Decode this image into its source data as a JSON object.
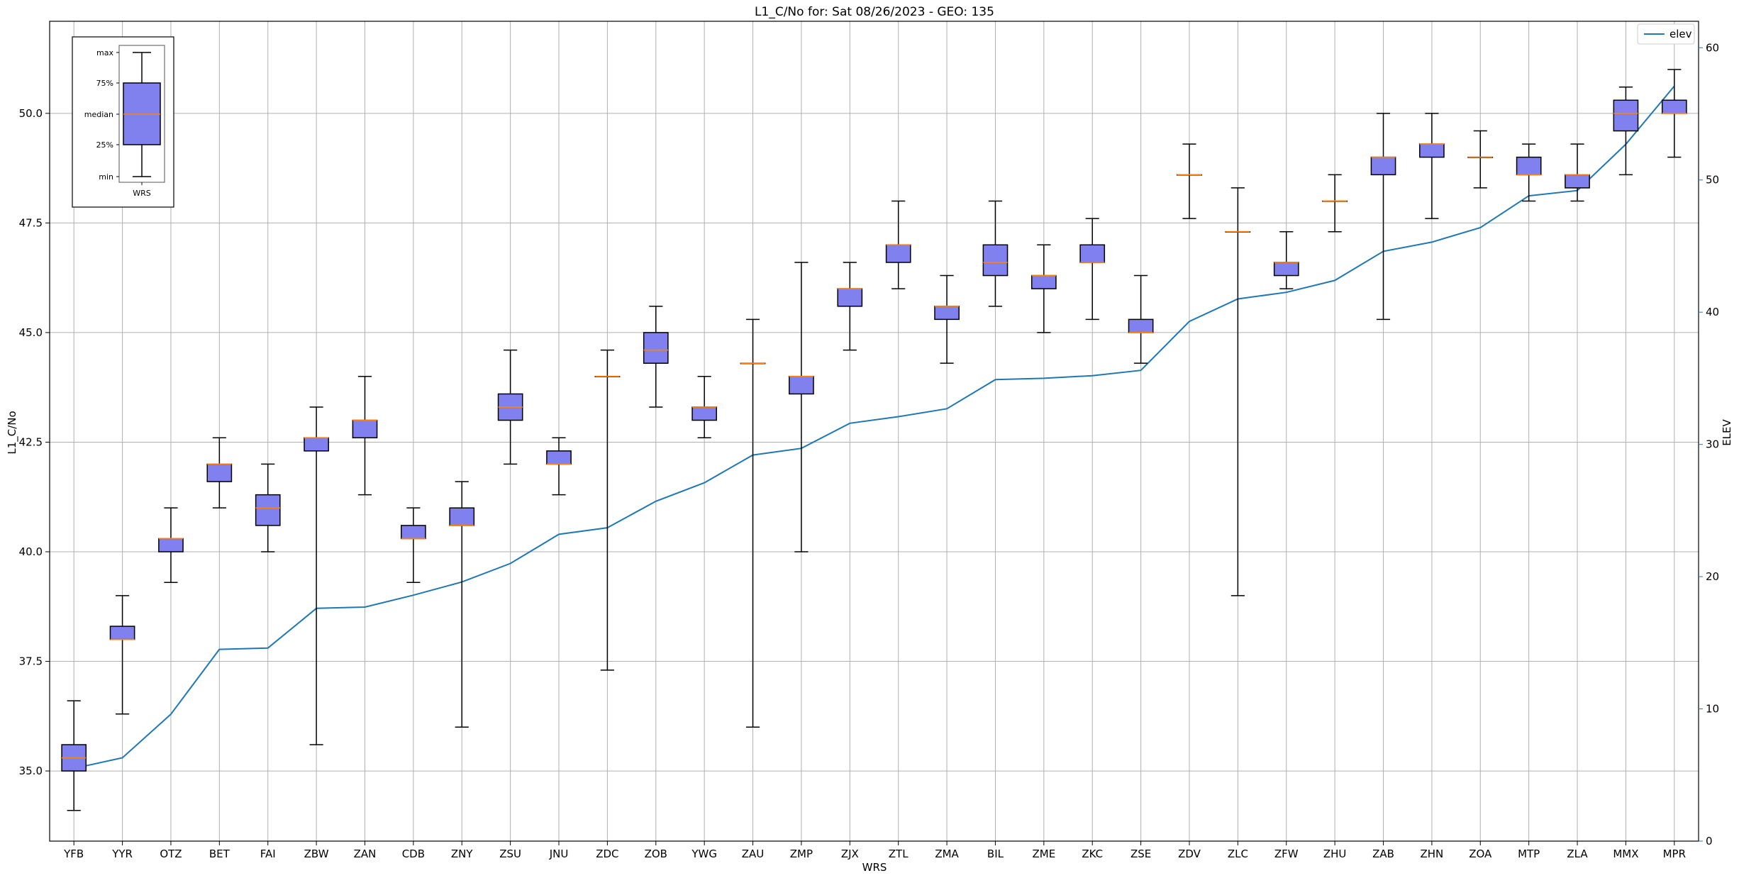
{
  "chart_data": {
    "type": "box",
    "title": "L1_C/No for: Sat 08/26/2023 - GEO: 135",
    "xlabel": "WRS",
    "ylabel": "L1_C/No",
    "ylabel_right": "ELEV",
    "ylim": [
      33.4,
      52.1
    ],
    "ylim_right": [
      0,
      62
    ],
    "yticks": [
      "35.0",
      "37.5",
      "40.0",
      "42.5",
      "45.0",
      "47.5",
      "50.0"
    ],
    "yticks_right": [
      "0",
      "10",
      "20",
      "30",
      "40",
      "50",
      "60"
    ],
    "grid": true,
    "legend": {
      "position": "top-right",
      "entries": [
        "elev"
      ]
    },
    "colors": {
      "box_fill": "#8080ee",
      "median": "#ff7f0e",
      "line": "#1f77b4",
      "right_axis": "#1f77b4"
    },
    "categories": [
      "YFB",
      "YYR",
      "OTZ",
      "BET",
      "FAI",
      "ZBW",
      "ZAN",
      "CDB",
      "ZNY",
      "ZSU",
      "JNU",
      "ZDC",
      "ZOB",
      "YWG",
      "ZAU",
      "ZMP",
      "ZJX",
      "ZTL",
      "ZMA",
      "BIL",
      "ZME",
      "ZKC",
      "ZSE",
      "ZDV",
      "ZLC",
      "ZFW",
      "ZHU",
      "ZAB",
      "ZHN",
      "ZOA",
      "MTP",
      "ZLA",
      "MMX",
      "MPR"
    ],
    "boxes": [
      {
        "min": 34.1,
        "q1": 35.0,
        "median": 35.3,
        "q3": 35.6,
        "max": 36.6
      },
      {
        "min": 36.3,
        "q1": 38.0,
        "median": 38.0,
        "q3": 38.3,
        "max": 39.0
      },
      {
        "min": 39.3,
        "q1": 40.0,
        "median": 40.3,
        "q3": 40.3,
        "max": 41.0
      },
      {
        "min": 41.0,
        "q1": 41.6,
        "median": 42.0,
        "q3": 42.0,
        "max": 42.6
      },
      {
        "min": 40.0,
        "q1": 40.6,
        "median": 41.0,
        "q3": 41.3,
        "max": 42.0
      },
      {
        "min": 35.6,
        "q1": 42.3,
        "median": 42.6,
        "q3": 42.6,
        "max": 43.3
      },
      {
        "min": 41.3,
        "q1": 42.6,
        "median": 43.0,
        "q3": 43.0,
        "max": 44.0
      },
      {
        "min": 39.3,
        "q1": 40.3,
        "median": 40.3,
        "q3": 40.6,
        "max": 41.0
      },
      {
        "min": 36.0,
        "q1": 40.6,
        "median": 40.6,
        "q3": 41.0,
        "max": 41.6
      },
      {
        "min": 42.0,
        "q1": 43.0,
        "median": 43.3,
        "q3": 43.6,
        "max": 44.6
      },
      {
        "min": 41.3,
        "q1": 42.0,
        "median": 42.0,
        "q3": 42.3,
        "max": 42.6
      },
      {
        "min": 37.3,
        "q1": 44.0,
        "median": 44.0,
        "q3": 44.0,
        "max": 44.6
      },
      {
        "min": 43.3,
        "q1": 44.3,
        "median": 44.6,
        "q3": 45.0,
        "max": 45.6
      },
      {
        "min": 42.6,
        "q1": 43.0,
        "median": 43.3,
        "q3": 43.3,
        "max": 44.0
      },
      {
        "min": 36.0,
        "q1": 44.3,
        "median": 44.3,
        "q3": 44.3,
        "max": 45.3
      },
      {
        "min": 40.0,
        "q1": 43.6,
        "median": 44.0,
        "q3": 44.0,
        "max": 46.6
      },
      {
        "min": 44.6,
        "q1": 45.6,
        "median": 46.0,
        "q3": 46.0,
        "max": 46.6
      },
      {
        "min": 46.0,
        "q1": 46.6,
        "median": 47.0,
        "q3": 47.0,
        "max": 48.0
      },
      {
        "min": 44.3,
        "q1": 45.3,
        "median": 45.6,
        "q3": 45.6,
        "max": 46.3
      },
      {
        "min": 45.6,
        "q1": 46.3,
        "median": 46.6,
        "q3": 47.0,
        "max": 48.0
      },
      {
        "min": 45.0,
        "q1": 46.0,
        "median": 46.3,
        "q3": 46.3,
        "max": 47.0
      },
      {
        "min": 45.3,
        "q1": 46.6,
        "median": 46.6,
        "q3": 47.0,
        "max": 47.6
      },
      {
        "min": 44.3,
        "q1": 45.0,
        "median": 45.0,
        "q3": 45.3,
        "max": 46.3
      },
      {
        "min": 47.6,
        "q1": 48.6,
        "median": 48.6,
        "q3": 48.6,
        "max": 49.3
      },
      {
        "min": 39.0,
        "q1": 47.3,
        "median": 47.3,
        "q3": 47.3,
        "max": 48.3
      },
      {
        "min": 46.0,
        "q1": 46.3,
        "median": 46.6,
        "q3": 46.6,
        "max": 47.3
      },
      {
        "min": 47.3,
        "q1": 48.0,
        "median": 48.0,
        "q3": 48.0,
        "max": 48.6
      },
      {
        "min": 45.3,
        "q1": 48.6,
        "median": 49.0,
        "q3": 49.0,
        "max": 50.0
      },
      {
        "min": 47.6,
        "q1": 49.0,
        "median": 49.3,
        "q3": 49.3,
        "max": 50.0
      },
      {
        "min": 48.3,
        "q1": 49.0,
        "median": 49.0,
        "q3": 49.0,
        "max": 49.6
      },
      {
        "min": 48.0,
        "q1": 48.6,
        "median": 48.6,
        "q3": 49.0,
        "max": 49.3
      },
      {
        "min": 48.0,
        "q1": 48.3,
        "median": 48.6,
        "q3": 48.6,
        "max": 49.3
      },
      {
        "min": 48.6,
        "q1": 49.6,
        "median": 50.0,
        "q3": 50.3,
        "max": 50.6
      },
      {
        "min": 49.0,
        "q1": 50.0,
        "median": 50.0,
        "q3": 50.3,
        "max": 51.0
      }
    ],
    "series": [
      {
        "name": "elev",
        "axis": "right",
        "values": [
          5.5,
          6.3,
          9.6,
          14.5,
          14.6,
          17.6,
          17.7,
          18.6,
          19.6,
          21.0,
          23.2,
          23.7,
          25.7,
          27.1,
          29.2,
          29.7,
          31.6,
          32.1,
          32.7,
          34.9,
          35.0,
          35.2,
          35.6,
          39.3,
          41.0,
          41.5,
          42.4,
          44.6,
          45.3,
          46.4,
          48.8,
          49.2,
          52.7,
          57.1
        ]
      }
    ],
    "inset_key": {
      "labels": [
        "max",
        "75%",
        "median",
        "25%",
        "min"
      ],
      "xlabel": "WRS"
    }
  }
}
